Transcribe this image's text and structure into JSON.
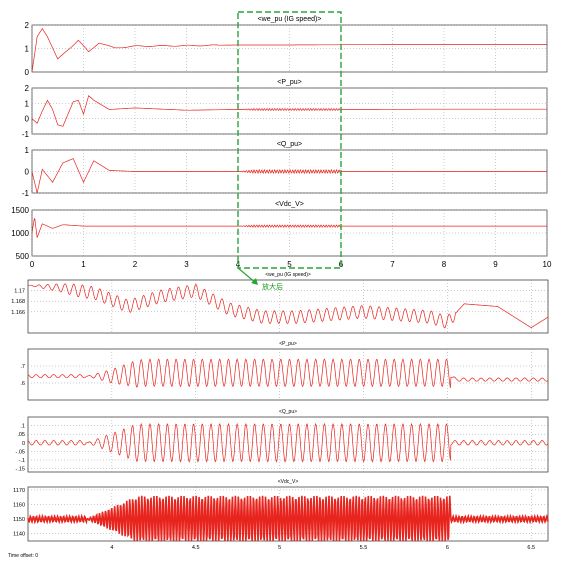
{
  "figure": {
    "annotation": "放大后",
    "time_offset_label": "Time offset:",
    "time_offset_value": "0",
    "zoom_box": {
      "x_start": 4,
      "x_end": 6
    }
  },
  "colors": {
    "signal": "#e8241e",
    "zoom_box": "#2aa33a",
    "frame": "#444444",
    "grid": "#9a9a9a"
  },
  "chart_data": [
    {
      "type": "line",
      "title": "<we_pu (IG speed)>",
      "x": [
        0,
        0.1,
        0.2,
        0.3,
        0.5,
        0.7,
        0.9,
        1.1,
        1.3,
        1.6,
        2,
        3,
        4,
        5,
        6,
        8,
        10
      ],
      "values": [
        0,
        1.5,
        1.85,
        1.5,
        0.55,
        0.95,
        1.35,
        0.85,
        1.25,
        1.02,
        1.1,
        1.12,
        1.15,
        1.15,
        1.16,
        1.17,
        1.17
      ],
      "xlim": [
        0,
        10
      ],
      "ylim": [
        0,
        2
      ],
      "yticks": [
        0,
        1,
        2
      ],
      "xticks": [
        0,
        1,
        2,
        3,
        4,
        5,
        6,
        7,
        8,
        9,
        10
      ],
      "grid": true
    },
    {
      "type": "line",
      "title": "<P_pu>",
      "x": [
        0,
        0.1,
        0.2,
        0.3,
        0.4,
        0.5,
        0.6,
        0.8,
        0.9,
        1.0,
        1.1,
        1.2,
        1.5,
        2,
        3,
        4,
        6,
        8,
        10
      ],
      "values": [
        0,
        -0.3,
        0.5,
        1.2,
        0.6,
        -0.4,
        -0.5,
        1.1,
        1.2,
        0.3,
        1.5,
        1.2,
        0.6,
        0.7,
        0.55,
        0.6,
        0.6,
        0.62,
        0.62
      ],
      "xlim": [
        0,
        10
      ],
      "ylim": [
        -1,
        2
      ],
      "yticks": [
        -1,
        0,
        1,
        2
      ],
      "xticks": [
        0,
        1,
        2,
        3,
        4,
        5,
        6,
        7,
        8,
        9,
        10
      ],
      "grid": true
    },
    {
      "type": "line",
      "title": "<Q_pu>",
      "x": [
        0,
        0.1,
        0.2,
        0.4,
        0.6,
        0.8,
        1.0,
        1.2,
        1.5,
        2,
        4,
        6,
        10
      ],
      "values": [
        0,
        -1.0,
        0.1,
        -0.5,
        0.4,
        0.6,
        -0.5,
        0.5,
        0.05,
        0,
        0,
        0,
        0
      ],
      "xlim": [
        0,
        10
      ],
      "ylim": [
        -1,
        1
      ],
      "yticks": [
        -1,
        0,
        1
      ],
      "xticks": [
        0,
        1,
        2,
        3,
        4,
        5,
        6,
        7,
        8,
        9,
        10
      ],
      "grid": true
    },
    {
      "type": "line",
      "title": "<Vdc_V>",
      "x": [
        0,
        0.05,
        0.1,
        0.2,
        0.4,
        0.6,
        1,
        2,
        4,
        6,
        10
      ],
      "values": [
        1000,
        1350,
        900,
        1200,
        1100,
        1180,
        1150,
        1150,
        1150,
        1150,
        1150
      ],
      "xlim": [
        0,
        10
      ],
      "ylim": [
        500,
        1500
      ],
      "yticks": [
        500,
        1000,
        1500
      ],
      "xticks": [
        0,
        1,
        2,
        3,
        4,
        5,
        6,
        7,
        8,
        9,
        10
      ],
      "xticklabels": [
        "0",
        "1",
        "2",
        "3",
        "4",
        "5",
        "6",
        "7",
        "8",
        "9",
        "10"
      ],
      "grid": true
    },
    {
      "type": "line",
      "title": "<we_pu (IG speed)>",
      "x": [
        3.5,
        3.7,
        3.9,
        4.1,
        4.3,
        4.5,
        4.7,
        4.9,
        5.1,
        5.3,
        5.5,
        5.7,
        5.9,
        6.0,
        6.1,
        6.3,
        6.5,
        6.6
      ],
      "values": [
        1.171,
        1.1705,
        1.1695,
        1.167,
        1.169,
        1.17,
        1.1665,
        1.165,
        1.165,
        1.1655,
        1.166,
        1.1655,
        1.165,
        1.164,
        1.1675,
        1.167,
        1.163,
        1.165
      ],
      "xlim": [
        3.5,
        6.6
      ],
      "ylim": [
        1.162,
        1.172
      ],
      "yticks": [
        1.166,
        1.168,
        1.17
      ],
      "xticks": [
        4,
        4.5,
        5,
        5.5,
        6,
        6.5
      ],
      "grid": true
    },
    {
      "type": "line",
      "title": "<P_pu>",
      "x": [
        3.5,
        3.8,
        4.0,
        4.2,
        4.5,
        5.0,
        5.5,
        6.0,
        6.05,
        6.2,
        6.6
      ],
      "values": [
        0.64,
        0.64,
        0.64,
        0.66,
        0.66,
        0.66,
        0.66,
        0.66,
        0.62,
        0.62,
        0.62
      ],
      "xlim": [
        3.5,
        6.6
      ],
      "ylim": [
        0.5,
        0.8
      ],
      "yticks": [
        0.6,
        0.7
      ],
      "xticks": [
        4,
        4.5,
        5,
        5.5,
        6,
        6.5
      ],
      "grid": true
    },
    {
      "type": "line",
      "title": "<Q_pu>",
      "x": [
        3.5,
        4.0,
        4.5,
        5.0,
        5.5,
        6.0,
        6.05,
        6.6
      ],
      "values": [
        0,
        0,
        0,
        0,
        0,
        0,
        0,
        0
      ],
      "xlim": [
        3.5,
        6.6
      ],
      "ylim": [
        -0.17,
        0.15
      ],
      "yticks": [
        -0.15,
        -0.1,
        -0.05,
        0,
        0.05,
        0.1
      ],
      "xticks": [
        4,
        4.5,
        5,
        5.5,
        6,
        6.5
      ],
      "grid": true
    },
    {
      "type": "line",
      "title": "<Vdc_V>",
      "x": [
        3.5,
        4.0,
        4.5,
        5.0,
        5.5,
        6.0,
        6.05,
        6.6
      ],
      "values": [
        1150,
        1150,
        1150,
        1150,
        1150,
        1150,
        1150,
        1150
      ],
      "xlim": [
        3.5,
        6.6
      ],
      "ylim": [
        1135,
        1172
      ],
      "yticks": [
        1140,
        1150,
        1160,
        1170
      ],
      "xticks": [
        4,
        4.5,
        5,
        5.5,
        6,
        6.5
      ],
      "grid": true
    }
  ]
}
